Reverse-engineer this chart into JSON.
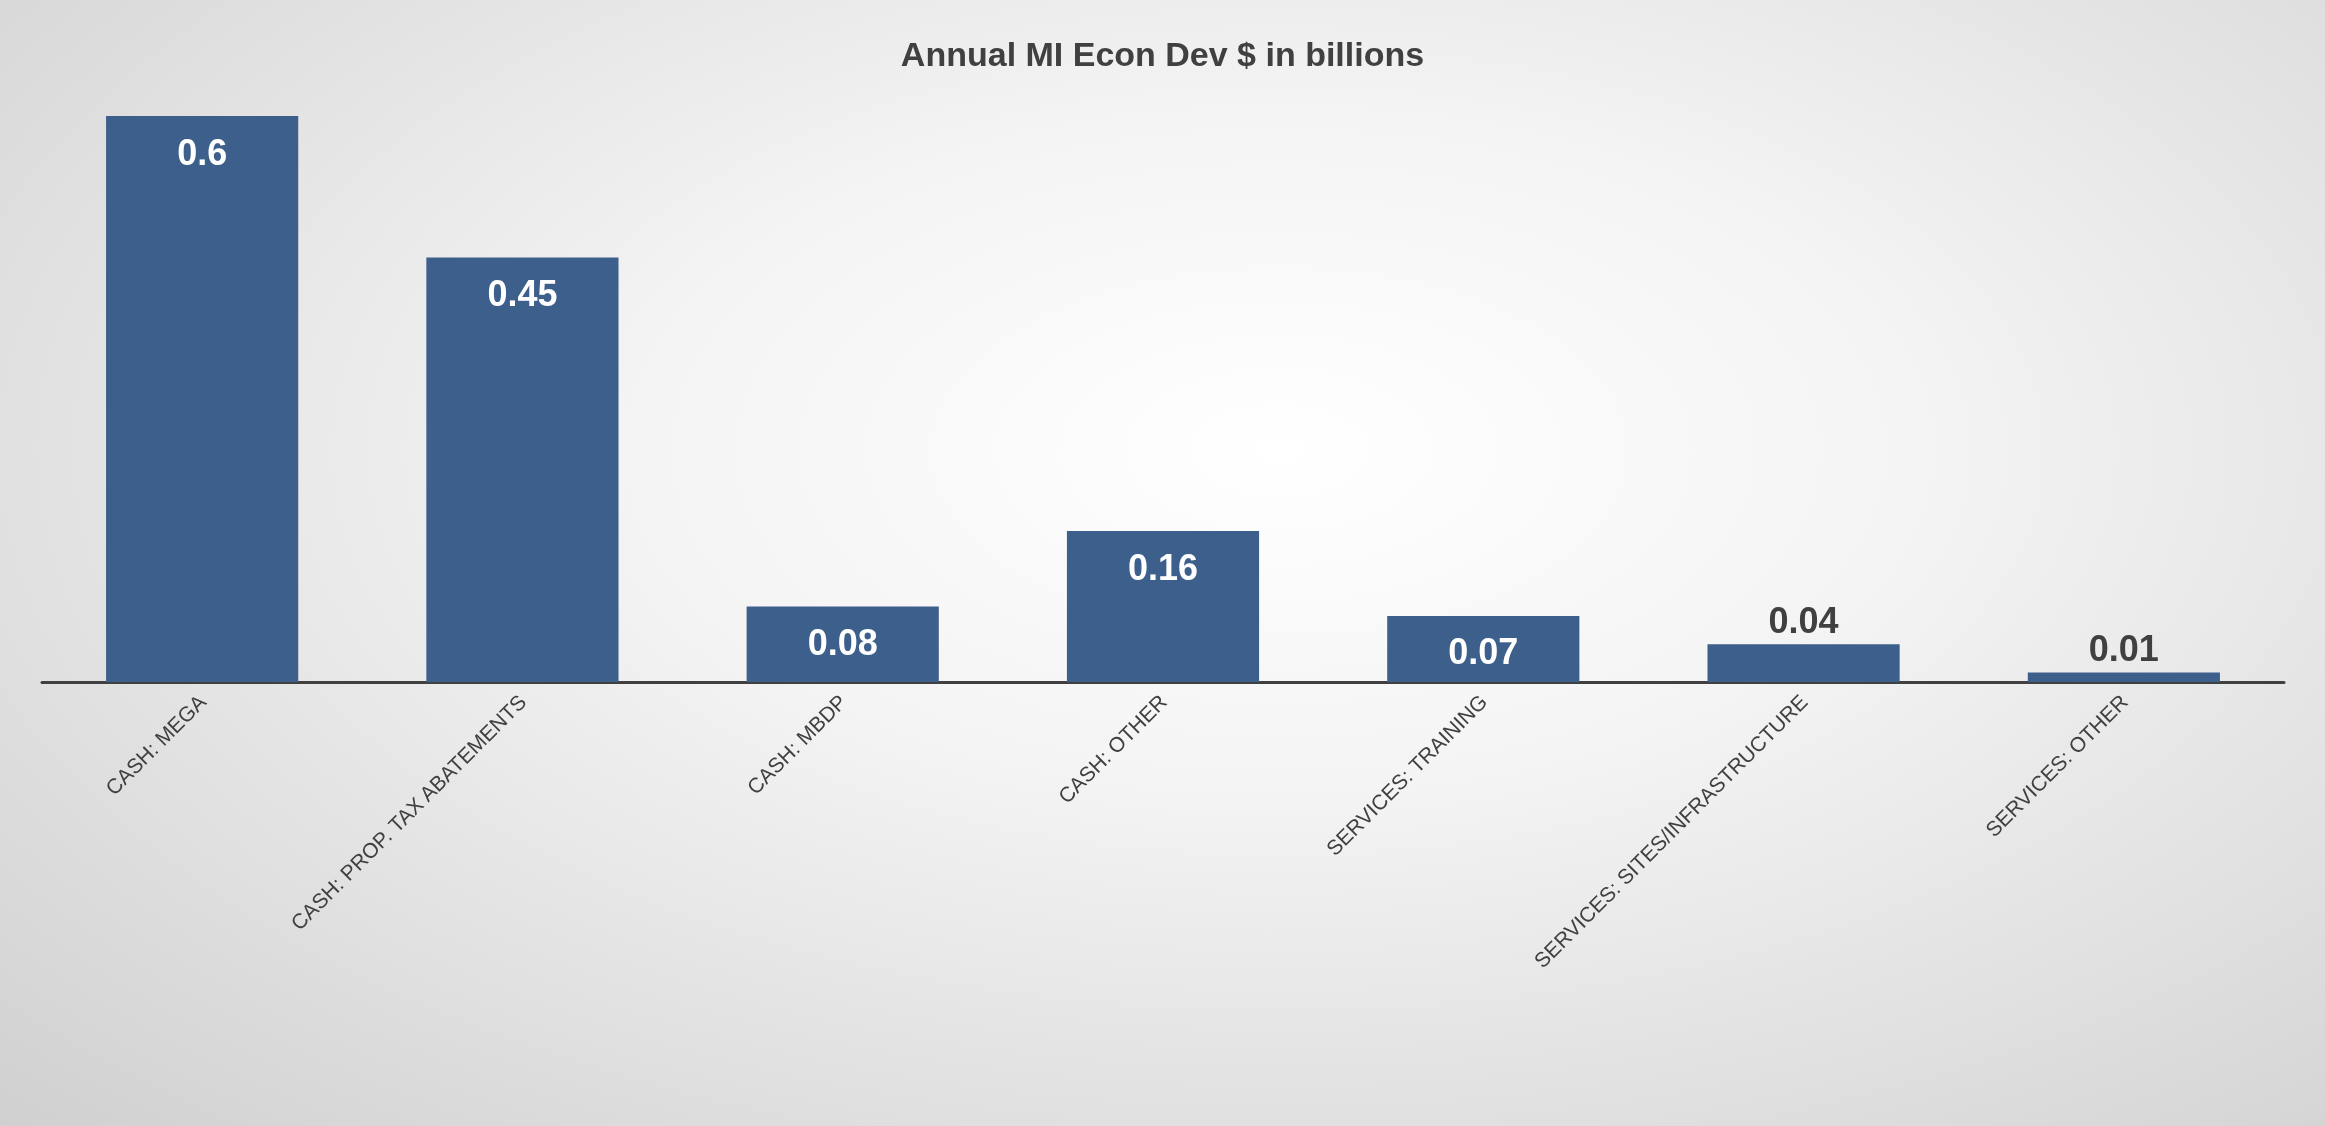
{
  "chart_data": {
    "type": "bar",
    "title": "Annual MI Econ Dev $ in billions",
    "categories": [
      "CASH: MEGA",
      "CASH: PROP. TAX ABATEMENTS",
      "CASH: MBDP",
      "CASH: OTHER",
      "SERVICES: TRAINING",
      "SERVICES: SITES/INFRASTRUCTURE",
      "SERVICES: OTHER"
    ],
    "values": [
      0.6,
      0.45,
      0.08,
      0.16,
      0.07,
      0.04,
      0.01
    ],
    "color": "#3d5f8c",
    "data_labels": true,
    "grid": false
  }
}
